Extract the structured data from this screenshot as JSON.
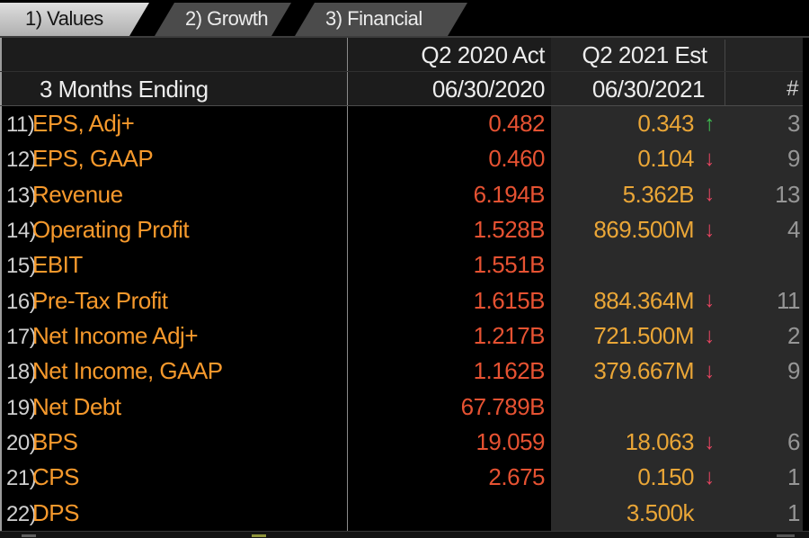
{
  "tabs": [
    {
      "name": "tab-values",
      "label": "1) Values",
      "active": true
    },
    {
      "name": "tab-growth",
      "label": "2) Growth",
      "active": false
    },
    {
      "name": "tab-financial",
      "label": "3) Financial",
      "active": false
    }
  ],
  "table": {
    "period_actual": "Q2 2020 Act",
    "period_estimate": "Q2 2021 Est",
    "row_label_header": "3 Months Ending",
    "date_actual": "06/30/2020",
    "date_estimate": "06/30/2021",
    "count_header": "#",
    "rows": [
      {
        "num": "11)",
        "label": "EPS, Adj+",
        "actual": "0.482",
        "estimate": "0.343",
        "direction": "up",
        "count": "3"
      },
      {
        "num": "12)",
        "label": "EPS, GAAP",
        "actual": "0.460",
        "estimate": "0.104",
        "direction": "down",
        "count": "9"
      },
      {
        "num": "13)",
        "label": "Revenue",
        "actual": "6.194B",
        "estimate": "5.362B",
        "direction": "down",
        "count": "13"
      },
      {
        "num": "14)",
        "label": "Operating Profit",
        "actual": "1.528B",
        "estimate": "869.500M",
        "direction": "down",
        "count": "4"
      },
      {
        "num": "15)",
        "label": "EBIT",
        "actual": "1.551B",
        "estimate": "",
        "direction": "none",
        "count": ""
      },
      {
        "num": "16)",
        "label": "Pre-Tax Profit",
        "actual": "1.615B",
        "estimate": "884.364M",
        "direction": "down",
        "count": "11"
      },
      {
        "num": "17)",
        "label": "Net Income Adj+",
        "actual": "1.217B",
        "estimate": "721.500M",
        "direction": "down",
        "count": "2"
      },
      {
        "num": "18)",
        "label": "Net Income, GAAP",
        "actual": "1.162B",
        "estimate": "379.667M",
        "direction": "down",
        "count": "9"
      },
      {
        "num": "19)",
        "label": "Net Debt",
        "actual": "67.789B",
        "estimate": "",
        "direction": "none",
        "count": ""
      },
      {
        "num": "20)",
        "label": "BPS",
        "actual": "19.059",
        "estimate": "18.063",
        "direction": "down",
        "count": "6"
      },
      {
        "num": "21)",
        "label": "CPS",
        "actual": "2.675",
        "estimate": "0.150",
        "direction": "down",
        "count": "1"
      },
      {
        "num": "22)",
        "label": "DPS",
        "actual": "",
        "estimate": "3.500k",
        "direction": "none",
        "count": "1"
      }
    ]
  },
  "colors": {
    "row_label_orange": "#f6992c",
    "actual_red": "#e65232",
    "estimate_amber": "#eaa637",
    "arrow_up_green": "#3fbf51",
    "arrow_down_red": "#e64560",
    "count_gray": "#969696",
    "estimate_panel_bg": "#2a2a2a",
    "header_bg": "#1c1c1c",
    "active_tab_bg": "#c8c8c8",
    "inactive_tab_bg": "#4b4b4b",
    "page_bg": "#000000"
  }
}
